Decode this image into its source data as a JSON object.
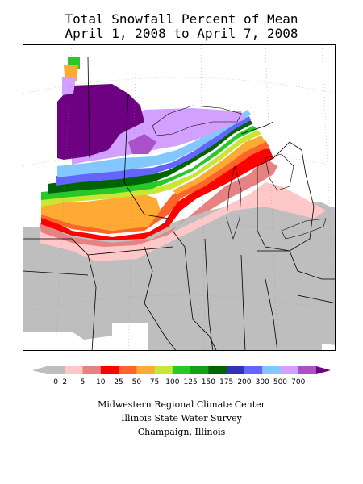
{
  "title": {
    "line1": "Total Snowfall Percent of Mean",
    "line2": "April 1, 2008 to April 7, 2008"
  },
  "legend": {
    "bins": [
      {
        "label": "0",
        "color": "#bebebe"
      },
      {
        "label": "2",
        "color": "#ffc8c8"
      },
      {
        "label": "5",
        "color": "#e68282"
      },
      {
        "label": "10",
        "color": "#ff0000"
      },
      {
        "label": "25",
        "color": "#ff6428"
      },
      {
        "label": "50",
        "color": "#ffaa32"
      },
      {
        "label": "75",
        "color": "#c8e632"
      },
      {
        "label": "100",
        "color": "#28c828"
      },
      {
        "label": "125",
        "color": "#14a014"
      },
      {
        "label": "150",
        "color": "#006400"
      },
      {
        "label": "175",
        "color": "#3232b4"
      },
      {
        "label": "200",
        "color": "#6464ff"
      },
      {
        "label": "300",
        "color": "#82c8ff"
      },
      {
        "label": "500",
        "color": "#d2a0ff"
      },
      {
        "label": "700",
        "color": "#aa50c8"
      }
    ],
    "top_color": "#6e0082",
    "bottom_color": "#bebebe"
  },
  "credits": {
    "line1": "Midwestern Regional Climate Center",
    "line2": "Illinois State Water Survey",
    "line3": "Champaign, Illinois"
  }
}
